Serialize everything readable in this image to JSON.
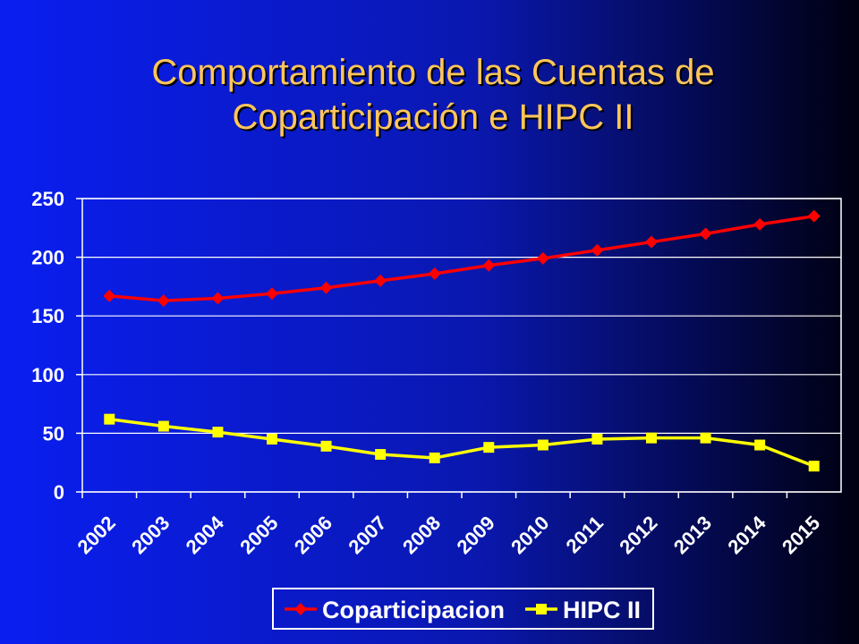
{
  "chart_data": {
    "type": "line",
    "title": "Comportamiento de las Cuentas de Coparticipación e HIPC II",
    "categories": [
      "2002",
      "2003",
      "2004",
      "2005",
      "2006",
      "2007",
      "2008",
      "2009",
      "2010",
      "2011",
      "2012",
      "2013",
      "2014",
      "2015"
    ],
    "series": [
      {
        "name": "Coparticipacion",
        "color": "#ff0000",
        "marker": "diamond",
        "values": [
          167,
          163,
          165,
          169,
          174,
          180,
          186,
          193,
          199,
          206,
          213,
          220,
          228,
          235
        ]
      },
      {
        "name": "HIPC II",
        "color": "#ffff00",
        "marker": "square",
        "values": [
          62,
          56,
          51,
          45,
          39,
          32,
          29,
          38,
          40,
          45,
          46,
          46,
          40,
          22
        ]
      }
    ],
    "ylim": [
      0,
      250
    ],
    "yticks": [
      0,
      50,
      100,
      150,
      200,
      250
    ],
    "grid": true,
    "legend": "bottom"
  }
}
